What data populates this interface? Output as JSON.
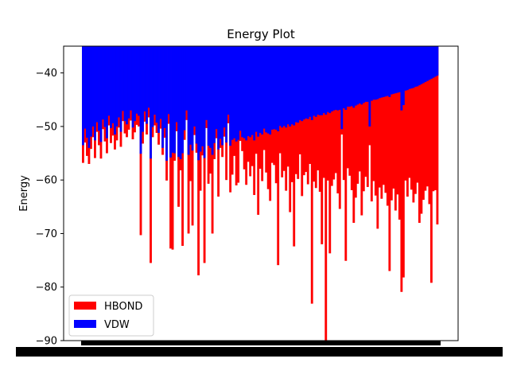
{
  "chart_data": {
    "type": "bar",
    "title": "Energy Plot",
    "xlabel": "",
    "ylabel": "Energy",
    "ylim": [
      -90,
      -35
    ],
    "yticks": [
      -40,
      -50,
      -60,
      -70,
      -80,
      -90
    ],
    "grid": false,
    "legend": {
      "placement": "lower-left",
      "entries": [
        "HBOND",
        "VDW"
      ]
    },
    "colors": {
      "HBOND": "#ff0000",
      "VDW": "#0000ff"
    },
    "series": [
      {
        "name": "HBOND",
        "values": [
          -56.8,
          -53.0,
          -55.5,
          -57.0,
          -54.2,
          -52.0,
          -55.9,
          -51.0,
          -53.5,
          -56.0,
          -50.5,
          -52.8,
          -55.0,
          -49.8,
          -53.1,
          -51.7,
          -54.3,
          -52.6,
          -50.2,
          -53.8,
          -49.0,
          -51.3,
          -52.0,
          -50.6,
          -48.9,
          -52.4,
          -51.1,
          -49.7,
          -50.0,
          -70.3,
          -53.2,
          -49.1,
          -51.5,
          -48.3,
          -75.5,
          -52.0,
          -49.8,
          -51.2,
          -53.4,
          -50.4,
          -55.3,
          -52.1,
          -60.1,
          -49.5,
          -72.8,
          -73.0,
          -56.4,
          -50.9,
          -65.0,
          -58.2,
          -72.3,
          -52.5,
          -48.8,
          -70.0,
          -60.2,
          -68.5,
          -51.6,
          -54.9,
          -77.8,
          -62.0,
          -55.4,
          -75.5,
          -50.3,
          -60.7,
          -58.8,
          -70.0,
          -56.1,
          -52.2,
          -63.1,
          -54.0,
          -55.7,
          -51.9,
          -60.0,
          -49.4,
          -62.3,
          -59.0,
          -55.5,
          -61.0,
          -60.5,
          -52.7,
          -54.6,
          -58.0,
          -60.9,
          -56.6,
          -59.3,
          -57.4,
          -62.8,
          -55.1,
          -66.5,
          -57.9,
          -60.2,
          -54.4,
          -58.6,
          -61.7,
          -63.9,
          -56.8,
          -57.2,
          -60.6,
          -75.9,
          -55.0,
          -59.5,
          -58.3,
          -62.0,
          -57.5,
          -66.0,
          -60.4,
          -72.4,
          -58.9,
          -59.8,
          -55.2,
          -63.0,
          -59.1,
          -58.5,
          -60.8,
          -57.0,
          -83.1,
          -60.3,
          -61.5,
          -58.2,
          -62.2,
          -72.0,
          -59.6,
          -90.0,
          -60.1,
          -73.7,
          -61.1,
          -59.9,
          -58.7,
          -62.5,
          -65.4,
          -51.5,
          -60.0,
          -75.1,
          -57.8,
          -59.2,
          -61.9,
          -68.0,
          -63.3,
          -60.7,
          -58.4,
          -66.6,
          -62.1,
          -59.4,
          -61.3,
          -53.5,
          -64.0,
          -60.2,
          -62.9,
          -69.1,
          -61.4,
          -63.5,
          -60.9,
          -62.4,
          -64.8,
          -77.0,
          -63.8,
          -61.6,
          -65.7,
          -62.7,
          -67.4,
          -80.9,
          -78.2,
          -60.1,
          -63.1,
          -59.6,
          -61.8,
          -64.2,
          -62.6,
          -60.5,
          -68.0,
          -66.3,
          -63.7,
          -62.0,
          -61.2,
          -64.5,
          -79.2,
          -62.1,
          -61.9,
          -68.3
        ]
      },
      {
        "name": "VDW",
        "values": [
          -53.5,
          -50.4,
          -52.1,
          -54.0,
          -51.9,
          -50.0,
          -52.6,
          -49.2,
          -50.8,
          -52.9,
          -48.7,
          -50.1,
          -52.2,
          -48.0,
          -50.3,
          -49.4,
          -51.5,
          -50.0,
          -48.3,
          -51.0,
          -47.1,
          -49.0,
          -49.6,
          -48.5,
          -47.0,
          -50.2,
          -49.0,
          -47.6,
          -48.0,
          -55.1,
          -51.0,
          -47.2,
          -49.5,
          -46.5,
          -56.0,
          -50.1,
          -47.8,
          -49.3,
          -51.2,
          -48.6,
          -54.0,
          -50.3,
          -56.4,
          -47.7,
          -55.8,
          -54.9,
          -55.0,
          -49.2,
          -55.7,
          -56.1,
          -55.0,
          -50.7,
          -47.0,
          -55.3,
          -53.4,
          -54.5,
          -50.0,
          -53.2,
          -56.3,
          -54.7,
          -53.7,
          -55.9,
          -48.8,
          -53.6,
          -54.0,
          -55.3,
          -53.1,
          -50.5,
          -54.3,
          -52.3,
          -53.5,
          -50.2,
          -53.0,
          -47.8,
          -53.6,
          -52.5,
          -52.2,
          -52.8,
          -52.5,
          -50.8,
          -52.0,
          -52.2,
          -52.6,
          -51.8,
          -52.0,
          -51.6,
          -52.6,
          -51.0,
          -51.9,
          -51.2,
          -51.5,
          -50.4,
          -51.1,
          -51.3,
          -51.5,
          -50.6,
          -50.5,
          -50.6,
          -50.9,
          -49.9,
          -50.2,
          -49.9,
          -50.2,
          -49.6,
          -50.0,
          -49.6,
          -49.8,
          -49.2,
          -49.3,
          -48.8,
          -49.0,
          -48.7,
          -48.5,
          -48.6,
          -48.2,
          -48.8,
          -48.0,
          -48.2,
          -47.8,
          -47.9,
          -47.9,
          -47.5,
          -47.8,
          -47.3,
          -47.5,
          -47.2,
          -47.0,
          -46.9,
          -47.0,
          -46.9,
          -50.5,
          -46.6,
          -46.9,
          -46.3,
          -46.3,
          -46.2,
          -46.5,
          -46.1,
          -45.9,
          -45.7,
          -45.9,
          -45.6,
          -45.4,
          -45.4,
          -50.0,
          -45.2,
          -45.0,
          -45.0,
          -44.9,
          -44.7,
          -44.6,
          -44.5,
          -44.4,
          -44.3,
          -44.5,
          -44.0,
          -43.9,
          -43.8,
          -43.7,
          -43.6,
          -47.0,
          -46.0,
          -43.3,
          -43.2,
          -43.0,
          -42.9,
          -42.8,
          -42.6,
          -42.5,
          -42.3,
          -42.1,
          -41.9,
          -41.7,
          -41.5,
          -41.3,
          -41.1,
          -40.9,
          -40.7,
          -40.5
        ]
      }
    ]
  }
}
